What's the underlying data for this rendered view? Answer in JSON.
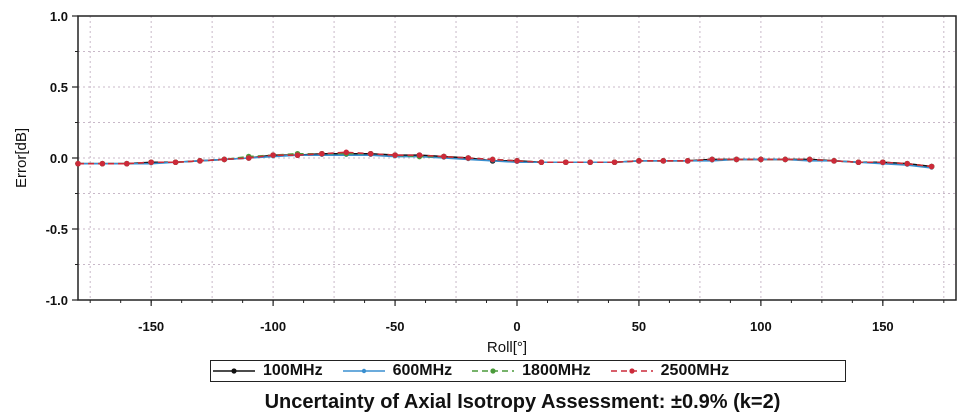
{
  "chart_data": {
    "type": "line",
    "xlabel": "Roll[°]",
    "ylabel": "Error[dB]",
    "xlim": [
      -180,
      180
    ],
    "ylim": [
      -1.0,
      1.0
    ],
    "xticks": [
      -150,
      -100,
      -50,
      0,
      50,
      100,
      150
    ],
    "xtick_labels": [
      "-150",
      "-100",
      "-50",
      "0",
      "50",
      "100",
      "150"
    ],
    "yticks": [
      1.0,
      0.5,
      0.0,
      -0.5,
      -1.0
    ],
    "ytick_labels": [
      "1.0",
      "0.5",
      "0.0",
      "-0.5",
      "-1.0"
    ],
    "grid": true,
    "x": [
      -180,
      -170,
      -160,
      -150,
      -140,
      -130,
      -120,
      -110,
      -100,
      -90,
      -80,
      -70,
      -60,
      -50,
      -40,
      -30,
      -20,
      -10,
      0,
      10,
      20,
      30,
      40,
      50,
      60,
      70,
      80,
      90,
      100,
      110,
      120,
      130,
      140,
      150,
      160,
      170
    ],
    "series": [
      {
        "name": "100MHz",
        "color": "#111111",
        "values": [
          -0.04,
          -0.04,
          -0.04,
          -0.03,
          -0.03,
          -0.02,
          -0.01,
          0.0,
          0.02,
          0.02,
          0.03,
          0.03,
          0.03,
          0.02,
          0.02,
          0.01,
          0.0,
          -0.02,
          -0.02,
          -0.03,
          -0.03,
          -0.03,
          -0.03,
          -0.02,
          -0.02,
          -0.02,
          -0.01,
          -0.01,
          -0.01,
          -0.01,
          -0.01,
          -0.02,
          -0.03,
          -0.03,
          -0.04,
          -0.06
        ]
      },
      {
        "name": "600MHz",
        "color": "#3a8fd0",
        "values": [
          -0.04,
          -0.04,
          -0.04,
          -0.04,
          -0.03,
          -0.02,
          -0.01,
          0.0,
          0.01,
          0.02,
          0.02,
          0.02,
          0.02,
          0.01,
          0.01,
          0.0,
          -0.01,
          -0.02,
          -0.03,
          -0.03,
          -0.03,
          -0.03,
          -0.03,
          -0.02,
          -0.02,
          -0.02,
          -0.02,
          -0.01,
          -0.01,
          -0.01,
          -0.02,
          -0.02,
          -0.03,
          -0.04,
          -0.05,
          -0.07
        ]
      },
      {
        "name": "1800MHz",
        "color": "#4a9a3a",
        "values": [
          -0.04,
          -0.04,
          -0.04,
          -0.03,
          -0.03,
          -0.02,
          -0.01,
          0.01,
          0.02,
          0.03,
          0.03,
          0.03,
          0.03,
          0.02,
          0.01,
          0.01,
          0.0,
          -0.01,
          -0.02,
          -0.03,
          -0.03,
          -0.03,
          -0.03,
          -0.02,
          -0.02,
          -0.02,
          -0.01,
          -0.01,
          -0.01,
          -0.01,
          -0.01,
          -0.02,
          -0.03,
          -0.03,
          -0.04,
          -0.06
        ]
      },
      {
        "name": "2500MHz",
        "color": "#cc2a3a",
        "values": [
          -0.04,
          -0.04,
          -0.04,
          -0.03,
          -0.03,
          -0.02,
          -0.01,
          0.0,
          0.02,
          0.02,
          0.03,
          0.04,
          0.03,
          0.02,
          0.02,
          0.01,
          0.0,
          -0.01,
          -0.02,
          -0.03,
          -0.03,
          -0.03,
          -0.03,
          -0.02,
          -0.02,
          -0.02,
          -0.01,
          -0.01,
          -0.01,
          -0.01,
          -0.01,
          -0.02,
          -0.03,
          -0.03,
          -0.04,
          -0.06
        ]
      }
    ]
  },
  "legend": {
    "items": [
      {
        "label": "100MHz",
        "color": "#111111",
        "dash": "none"
      },
      {
        "label": "600MHz",
        "color": "#3a8fd0",
        "dash": "none"
      },
      {
        "label": "1800MHz",
        "color": "#4a9a3a",
        "dash": "6,4"
      },
      {
        "label": "2500MHz",
        "color": "#cc2a3a",
        "dash": "6,4"
      }
    ]
  },
  "caption": "Uncertainty of Axial Isotropy Assessment: ±0.9% (k=2)"
}
